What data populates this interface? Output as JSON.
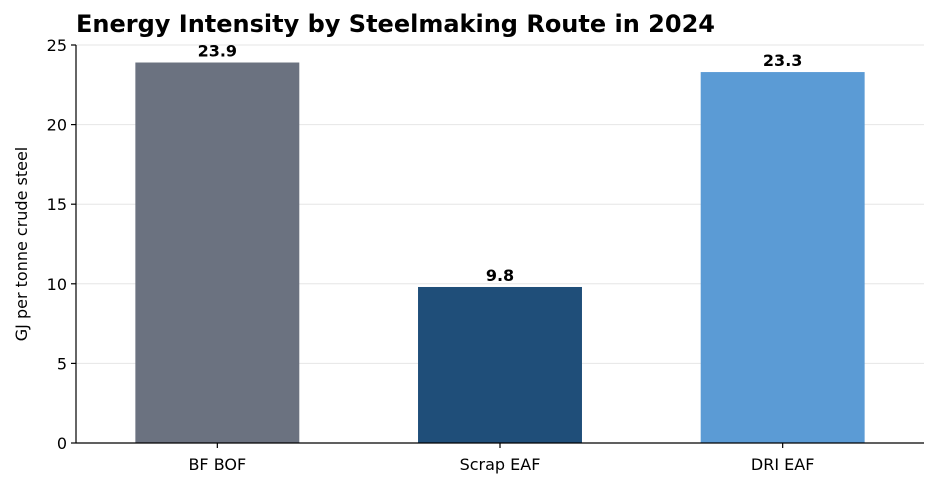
{
  "chart_data": {
    "type": "bar",
    "title": "Energy Intensity by Steelmaking Route in 2024",
    "xlabel": "",
    "ylabel": "GJ per tonne crude steel",
    "categories": [
      "BF BOF",
      "Scrap EAF",
      "DRI EAF"
    ],
    "values": [
      23.9,
      9.8,
      23.3
    ],
    "data_labels": [
      "23.9",
      "9.8",
      "23.3"
    ],
    "colors": [
      "#6b7280",
      "#1f4e79",
      "#5b9bd5"
    ],
    "ylim": [
      0,
      25
    ],
    "yticks": [
      0,
      5,
      10,
      15,
      20,
      25
    ],
    "grid": "horizontal"
  }
}
